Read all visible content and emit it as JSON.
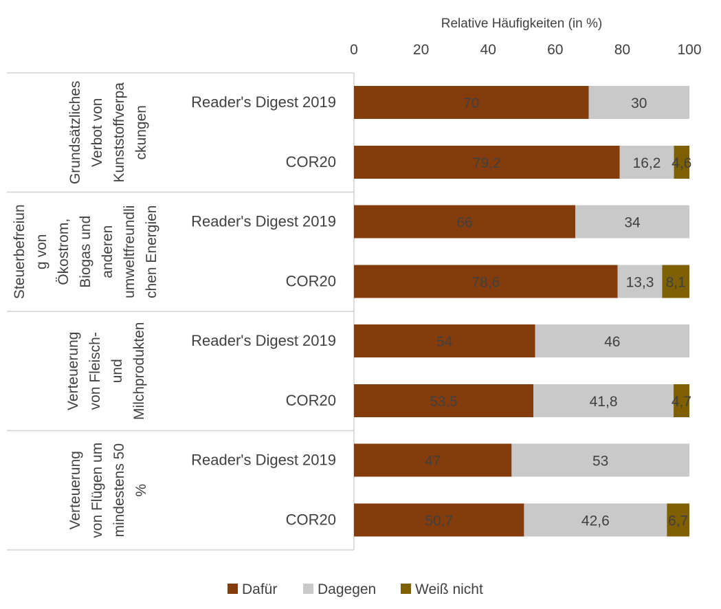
{
  "chart_data": {
    "type": "bar",
    "orientation": "horizontal",
    "stacked": true,
    "x_axis_title": "Relative Häufigkeiten (in %)",
    "x_ticks": [
      "0",
      "20",
      "40",
      "60",
      "80",
      "100"
    ],
    "xlim": [
      0,
      100
    ],
    "colors": {
      "Dafür": "#843C0C",
      "Dagegen": "#C9C9C9",
      "Weiß nicht": "#7F6000"
    },
    "legend": [
      "Dafür",
      "Dagegen",
      "Weiß nicht"
    ],
    "groups": [
      {
        "label_lines": [
          "Grundsätzliches",
          "Verbot von",
          "Kunststoffverpa",
          "ckungen"
        ],
        "rows": [
          {
            "label": "Reader's Digest 2019",
            "values": [
              70,
              30,
              0
            ],
            "labels": [
              "70",
              "30",
              ""
            ]
          },
          {
            "label": "COR20",
            "values": [
              79.2,
              16.2,
              4.6
            ],
            "labels": [
              "79,2",
              "16,2",
              "4,6"
            ]
          }
        ]
      },
      {
        "label_lines": [
          "Steuerbefreiun",
          "g von",
          "Ökostrom,",
          "Biogas und",
          "anderen",
          "umweltfreundli",
          "chen Energien"
        ],
        "rows": [
          {
            "label": "Reader's Digest 2019",
            "values": [
              66,
              34,
              0
            ],
            "labels": [
              "66",
              "34",
              ""
            ]
          },
          {
            "label": "COR20",
            "values": [
              78.6,
              13.3,
              8.1
            ],
            "labels": [
              "78,6",
              "13,3",
              "8,1"
            ]
          }
        ]
      },
      {
        "label_lines": [
          "Verteuerung",
          "von Fleisch-",
          "und",
          "Milchprodukten"
        ],
        "rows": [
          {
            "label": "Reader's Digest 2019",
            "values": [
              54,
              46,
              0
            ],
            "labels": [
              "54",
              "46",
              ""
            ]
          },
          {
            "label": "COR20",
            "values": [
              53.5,
              41.8,
              4.7
            ],
            "labels": [
              "53,5",
              "41,8",
              "4,7"
            ]
          }
        ]
      },
      {
        "label_lines": [
          "Verteuerung",
          "von Flügen um",
          "mindestens 50",
          "%"
        ],
        "rows": [
          {
            "label": "Reader's Digest 2019",
            "values": [
              47,
              53,
              0
            ],
            "labels": [
              "47",
              "53",
              ""
            ]
          },
          {
            "label": "COR20",
            "values": [
              50.7,
              42.6,
              6.7
            ],
            "labels": [
              "50,7",
              "42,6",
              "6,7"
            ]
          }
        ]
      }
    ]
  }
}
